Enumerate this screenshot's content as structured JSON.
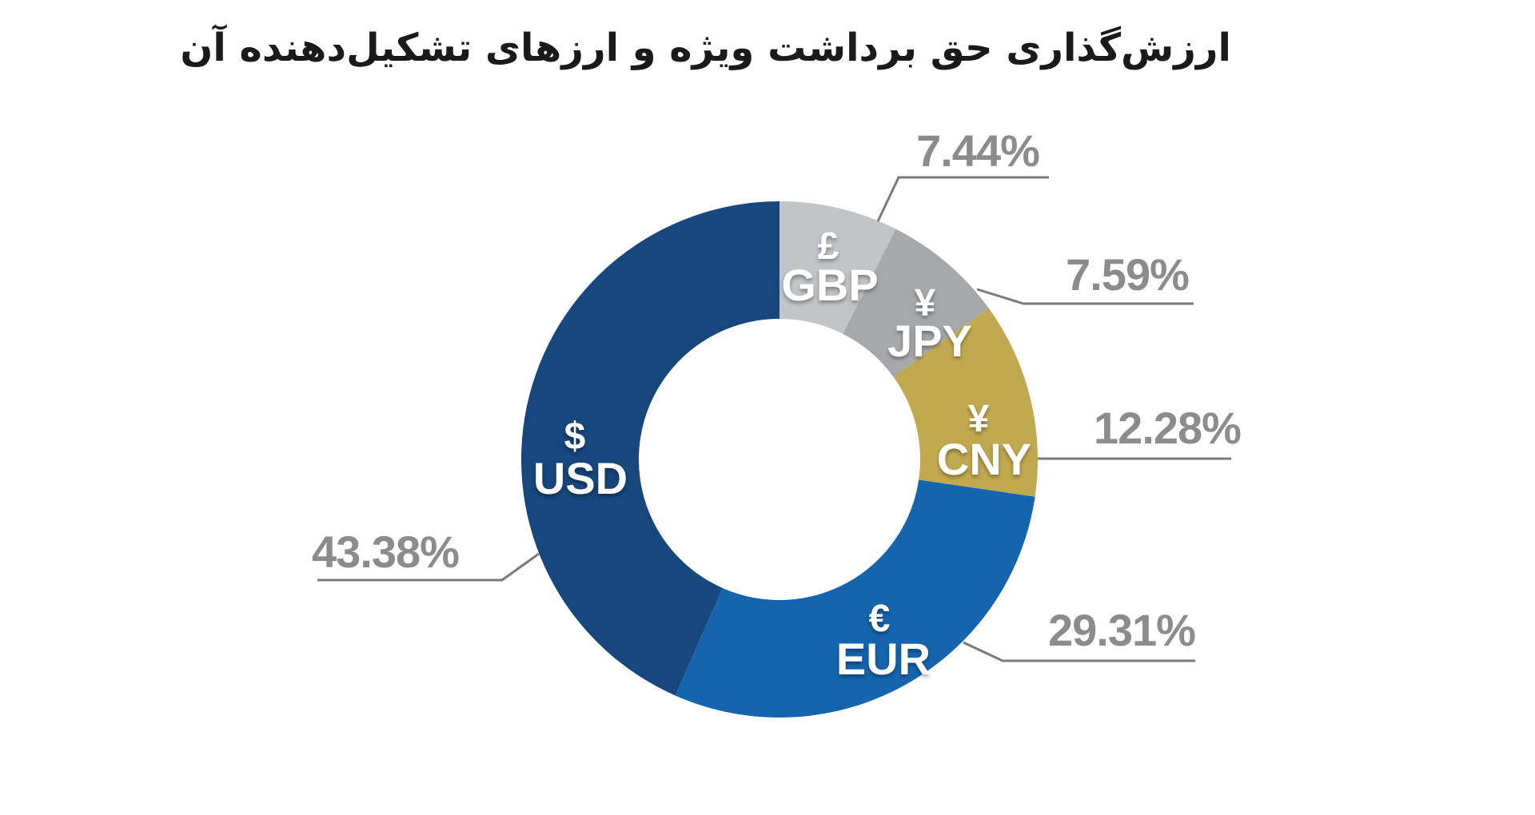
{
  "title": "ارزش‌گذاری حق برداشت ویژه و ارزهای تشکیل‌دهنده آن",
  "chart_data": {
    "type": "pie",
    "subtype": "donut",
    "title": "ارزش‌گذاری حق برداشت ویژه و ارزهای تشکیل‌دهنده آن",
    "direction": "clockwise",
    "start_angle_deg_from_top": 0,
    "total": 100,
    "segments": [
      {
        "code": "GBP",
        "symbol": "£",
        "value": 7.44,
        "percent_label": "7.44%",
        "color": "#c3c4c6"
      },
      {
        "code": "JPY",
        "symbol": "¥",
        "value": 7.59,
        "percent_label": "7.59%",
        "color": "#a7a8aa"
      },
      {
        "code": "CNY",
        "symbol": "¥",
        "value": 12.28,
        "percent_label": "12.28%",
        "color": "#c1a94f"
      },
      {
        "code": "EUR",
        "symbol": "€",
        "value": 29.31,
        "percent_label": "29.31%",
        "color": "#1565ae"
      },
      {
        "code": "USD",
        "symbol": "$",
        "value": 43.38,
        "percent_label": "43.38%",
        "color": "#17477c"
      }
    ],
    "colors": {
      "background": "#ffffff",
      "title_text": "#1a1a1a",
      "slice_text": "#ffffff",
      "percent_text": "#8c8c8c",
      "leader_line": "#7a7a7a"
    }
  }
}
